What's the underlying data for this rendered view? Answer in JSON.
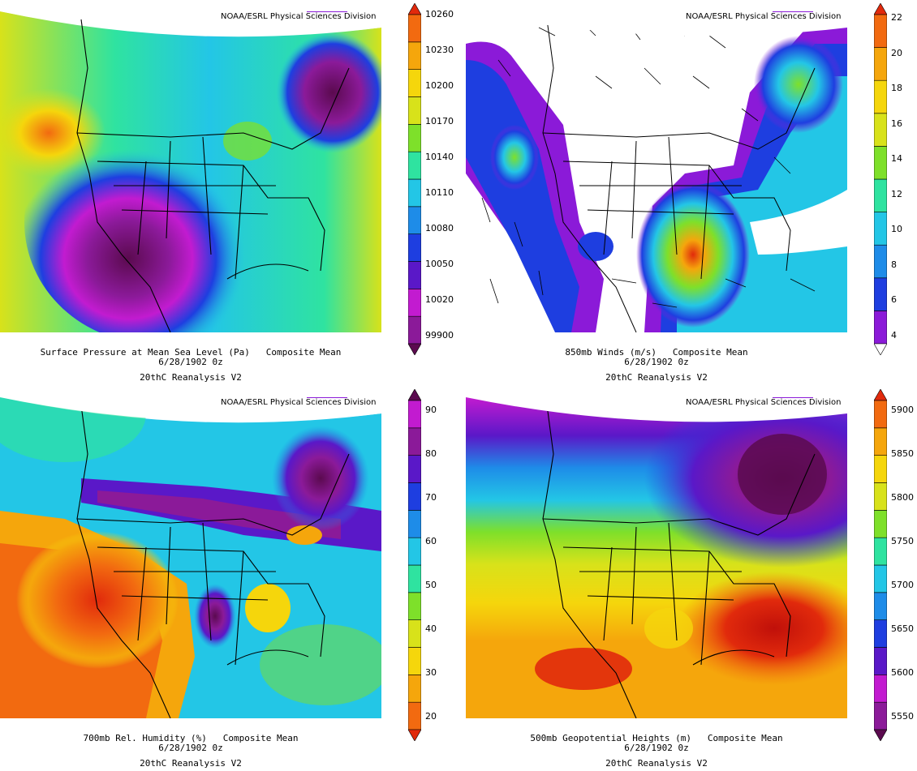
{
  "panels": [
    {
      "credit": "NOAA/ESRL Physical Sciences Division",
      "caption_line1": "Surface Pressure at Mean Sea Level (Pa)   Composite Mean",
      "caption_line2": "6/28/1902 0z",
      "caption_line3": "20thC Reanalysis V2",
      "scale_colors": [
        "#5b0a4f",
        "#8b1a99",
        "#c21bd0",
        "#5a18c8",
        "#1e3ee0",
        "#1e8ce8",
        "#23c6e6",
        "#2fe3a0",
        "#7ee02a",
        "#d8e21a",
        "#f5d60c",
        "#f5a60c",
        "#f26a10",
        "#e12a0c"
      ],
      "tick_labels": [
        "99900",
        "10020",
        "10050",
        "10080",
        "10110",
        "10140",
        "10170",
        "10200",
        "10230",
        "10260"
      ]
    },
    {
      "credit": "NOAA/ESRL Physical Sciences Division",
      "caption_line1": "850mb Winds (m/s)   Composite Mean",
      "caption_line2": "6/28/1902 0z",
      "caption_line3": "20thC Reanalysis V2",
      "scale_colors": [
        "#ffffff",
        "#8b1ad8",
        "#1e3ee0",
        "#1e8ce8",
        "#23c6e6",
        "#2fe3a0",
        "#7ee02a",
        "#d8e21a",
        "#f5d60c",
        "#f5a60c",
        "#f26a10",
        "#e12a0c"
      ],
      "tick_labels": [
        "4",
        "6",
        "8",
        "10",
        "12",
        "14",
        "16",
        "18",
        "20",
        "22"
      ]
    },
    {
      "credit": "NOAA/ESRL Physical Sciences Division",
      "caption_line1": "700mb Rel. Humidity (%)   Composite Mean",
      "caption_line2": "6/28/1902 0z",
      "caption_line3": "20thC Reanalysis V2",
      "scale_colors": [
        "#e12a0c",
        "#f26a10",
        "#f5a60c",
        "#f5d60c",
        "#d8e21a",
        "#7ee02a",
        "#2fe3a0",
        "#23c6e6",
        "#1e8ce8",
        "#1e3ee0",
        "#5a18c8",
        "#8b1a99",
        "#c21bd0",
        "#5b0a4f"
      ],
      "tick_labels": [
        "20",
        "30",
        "40",
        "50",
        "60",
        "70",
        "80",
        "90"
      ]
    },
    {
      "credit": "NOAA/ESRL Physical Sciences Division",
      "caption_line1": "500mb Geopotential Heights (m)   Composite Mean",
      "caption_line2": "6/28/1902 0z",
      "caption_line3": "20thC Reanalysis V2",
      "scale_colors": [
        "#5b0a4f",
        "#8b1a99",
        "#c21bd0",
        "#5a18c8",
        "#1e3ee0",
        "#1e8ce8",
        "#23c6e6",
        "#2fe3a0",
        "#7ee02a",
        "#d8e21a",
        "#f5d60c",
        "#f5a60c",
        "#f26a10",
        "#e12a0c"
      ],
      "tick_labels": [
        "5550",
        "5600",
        "5650",
        "5700",
        "5750",
        "5800",
        "5850",
        "5900"
      ]
    }
  ]
}
